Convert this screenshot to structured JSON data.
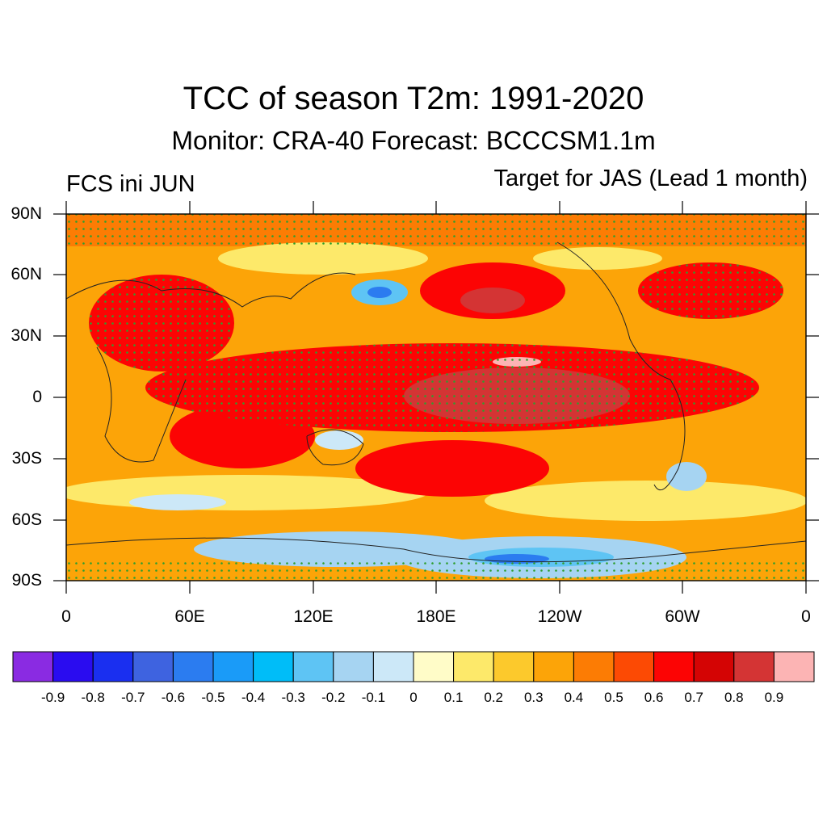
{
  "title": "TCC of season T2m: 1991-2020",
  "subtitle": "Monitor: CRA-40   Forecast: BCCCSM1.1m",
  "left_label": "FCS ini JUN",
  "right_label": "Target for JAS (Lead 1 month)",
  "lat_labels": [
    "90N",
    "60N",
    "30N",
    "0",
    "30S",
    "60S",
    "90S"
  ],
  "lon_labels": [
    "0",
    "60E",
    "120E",
    "180E",
    "120W",
    "60W",
    "0"
  ],
  "colorbar": {
    "labels": [
      "-0.9",
      "-0.8",
      "-0.7",
      "-0.6",
      "-0.5",
      "-0.4",
      "-0.3",
      "-0.2",
      "-0.1",
      "0",
      "0.1",
      "0.2",
      "0.3",
      "0.4",
      "0.5",
      "0.6",
      "0.7",
      "0.8",
      "0.9"
    ],
    "colors": [
      "#8a2be2",
      "#2a0cf0",
      "#1a2ff0",
      "#3e63e0",
      "#2b7cf0",
      "#1a9bf8",
      "#00bdf8",
      "#5ec4f4",
      "#a6d4f2",
      "#cce8f8",
      "#fffcc8",
      "#fde96a",
      "#fcc92c",
      "#fca408",
      "#fc7c04",
      "#fc4a04",
      "#fc0404",
      "#d40404",
      "#d43434",
      "#fcb4b4"
    ]
  },
  "map": {
    "fill_color": "#fc7c04",
    "significance_dot_color": "#2e9e2e"
  }
}
